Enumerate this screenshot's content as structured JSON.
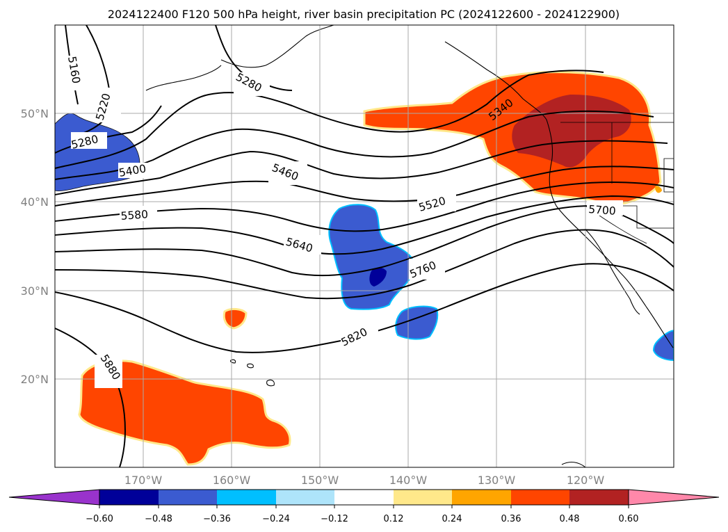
{
  "title": "2024122400 F120 500 hPa height, river basin precipitation PC (2024122600 - 2024122900)",
  "map": {
    "projection": "PlateCarree",
    "lon_range": [
      -180,
      -110
    ],
    "lat_range": [
      10,
      60
    ],
    "gridlines": true,
    "lat_labels": [
      "50°N",
      "40°N",
      "30°N",
      "20°N"
    ],
    "lon_labels": [
      "170°W",
      "160°W",
      "150°W",
      "140°W",
      "130°W",
      "120°W"
    ],
    "contour_field": "500 hPa height",
    "contour_labels": [
      "5160",
      "5220",
      "5280",
      "5280",
      "5400",
      "5460",
      "5520",
      "5580",
      "5640",
      "5700",
      "5760",
      "5820",
      "5880",
      "5340"
    ],
    "shaded_field": "river basin precipitation PC"
  },
  "colorbar": {
    "ticks": [
      "−0.60",
      "−0.48",
      "−0.36",
      "−0.24",
      "−0.12",
      "0.12",
      "0.24",
      "0.36",
      "0.48",
      "0.60"
    ],
    "colors": [
      "#9933cc",
      "#000099",
      "#3b5bd0",
      "#00bfff",
      "#aee4fa",
      "#ffffff",
      "#ffe88a",
      "#ffa500",
      "#ff4500",
      "#b22222",
      "#ff88aa"
    ],
    "extend": "both"
  }
}
